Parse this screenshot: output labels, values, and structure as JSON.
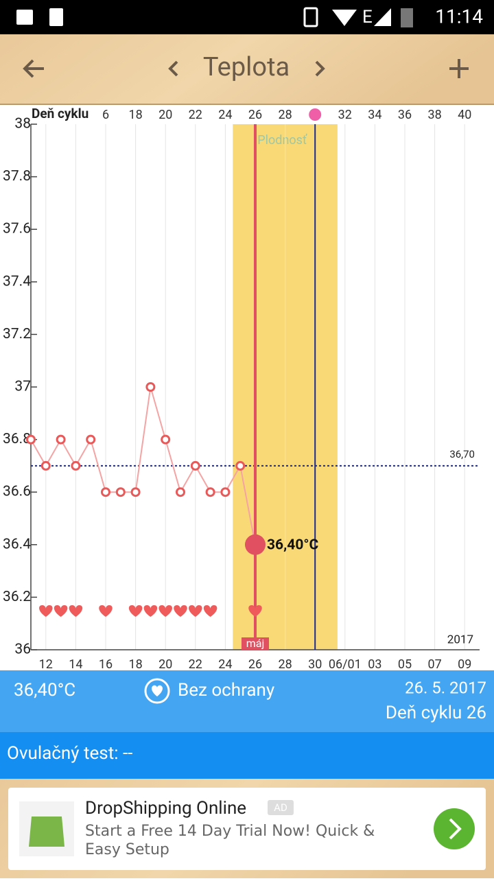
{
  "status_bar": {
    "time": "11:14"
  },
  "toolbar": {
    "title": "Teplota"
  },
  "chart_data": {
    "type": "line",
    "top_axis_label": "Deň cyklu",
    "top_ticks": [
      {
        "value": 16,
        "label": "6"
      },
      18,
      20,
      22,
      24,
      26,
      28,
      32,
      34,
      36,
      38,
      40
    ],
    "x": [
      11,
      12,
      13,
      14,
      15,
      16,
      17,
      18,
      19,
      20,
      21,
      22,
      23,
      24,
      25,
      26
    ],
    "series": [
      {
        "name": "Teplota",
        "color": "#e85a5a",
        "values": [
          36.8,
          36.7,
          36.8,
          36.7,
          36.8,
          36.6,
          36.6,
          36.6,
          37.0,
          36.8,
          36.6,
          36.7,
          36.6,
          36.6,
          36.7,
          36.4
        ]
      }
    ],
    "point_label": "36,40°C",
    "xlim": [
      11,
      41
    ],
    "xticks": [
      12,
      14,
      16,
      18,
      20,
      22,
      24,
      26,
      28,
      30,
      {
        "value": 32,
        "label": "06/01"
      },
      {
        "value": 34,
        "label": "03"
      },
      {
        "value": 36,
        "label": "05"
      },
      {
        "value": 38,
        "label": "07"
      },
      {
        "value": 40,
        "label": "09"
      }
    ],
    "ylim": [
      36,
      38
    ],
    "yticks": [
      36,
      36.2,
      36.4,
      36.6,
      36.8,
      37,
      37.2,
      37.4,
      37.6,
      37.8,
      38
    ],
    "coverline": {
      "value": 36.7,
      "label": "36,70"
    },
    "fertile_window": {
      "range": [
        24.5,
        31.5
      ],
      "label": "Plodnosť"
    },
    "ovulation_day": 30,
    "intercourse_days": [
      12,
      13,
      14,
      16,
      18,
      19,
      20,
      21,
      22,
      23,
      26
    ],
    "year_label": "2017",
    "month_label": "máj",
    "grid": true
  },
  "info": {
    "temperature": "36,40°C",
    "protection": "Bez ochrany",
    "date": "26. 5. 2017",
    "cycle_day": "Deň cyklu 26",
    "ovulation_test": "Ovulačný test: --"
  },
  "ad": {
    "title": "DropShipping Online",
    "badge": "AD",
    "text": "Start a Free 14 Day Trial Now! Quick & Easy Setup"
  }
}
